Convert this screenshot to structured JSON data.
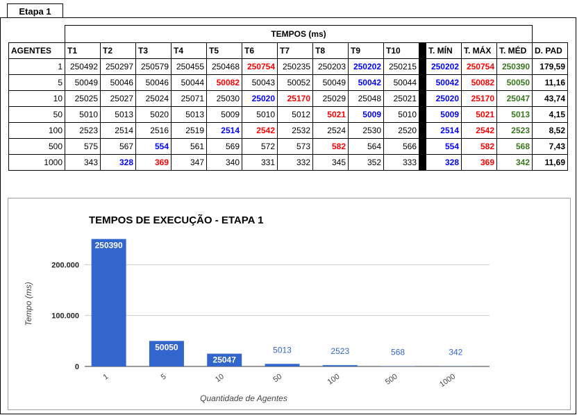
{
  "sheet_tab": "Etapa 1",
  "table": {
    "title": "TEMPOS (ms)",
    "headers": [
      "AGENTES",
      "T1",
      "T2",
      "T3",
      "T4",
      "T5",
      "T6",
      "T7",
      "T8",
      "T9",
      "T10",
      "T. MÍN",
      "T. MÁX",
      "T. MÉD",
      "D. PAD"
    ],
    "rows": [
      {
        "agents": "1",
        "t": [
          "250492",
          "250297",
          "250579",
          "250455",
          "250468",
          "250754",
          "250235",
          "250203",
          "250202",
          "250215"
        ],
        "min_col": 8,
        "max_col": 5,
        "tmin": "250202",
        "tmax": "250754",
        "tmed": "250390",
        "dpad": "179,59"
      },
      {
        "agents": "5",
        "t": [
          "50049",
          "50046",
          "50046",
          "50044",
          "50082",
          "50043",
          "50052",
          "50049",
          "50042",
          "50044"
        ],
        "min_col": 8,
        "max_col": 4,
        "tmin": "50042",
        "tmax": "50082",
        "tmed": "50050",
        "dpad": "11,16"
      },
      {
        "agents": "10",
        "t": [
          "25025",
          "25027",
          "25024",
          "25071",
          "25030",
          "25020",
          "25170",
          "25029",
          "25048",
          "25021"
        ],
        "min_col": 5,
        "max_col": 6,
        "tmin": "25020",
        "tmax": "25170",
        "tmed": "25047",
        "dpad": "43,74"
      },
      {
        "agents": "50",
        "t": [
          "5010",
          "5013",
          "5020",
          "5013",
          "5009",
          "5010",
          "5012",
          "5021",
          "5009",
          "5010"
        ],
        "min_col": 8,
        "max_col": 7,
        "tmin": "5009",
        "tmax": "5021",
        "tmed": "5013",
        "dpad": "4,15"
      },
      {
        "agents": "100",
        "t": [
          "2523",
          "2514",
          "2516",
          "2519",
          "2514",
          "2542",
          "2532",
          "2524",
          "2530",
          "2520"
        ],
        "min_col": 4,
        "max_col": 5,
        "tmin": "2514",
        "tmax": "2542",
        "tmed": "2523",
        "dpad": "8,52"
      },
      {
        "agents": "500",
        "t": [
          "575",
          "567",
          "554",
          "561",
          "569",
          "572",
          "573",
          "582",
          "564",
          "566"
        ],
        "min_col": 2,
        "max_col": 7,
        "tmin": "554",
        "tmax": "582",
        "tmed": "568",
        "dpad": "7,43"
      },
      {
        "agents": "1000",
        "t": [
          "343",
          "328",
          "369",
          "347",
          "340",
          "331",
          "332",
          "345",
          "352",
          "333"
        ],
        "min_col": 1,
        "max_col": 2,
        "tmin": "328",
        "tmax": "369",
        "tmed": "342",
        "dpad": "11,69"
      }
    ]
  },
  "colors": {
    "min": "#0000ff",
    "max": "#ff0000",
    "avg": "#38761d",
    "bar": "#3366cc",
    "label_out": "#3366cc",
    "grid": "#cccccc"
  },
  "chart_data": {
    "type": "bar",
    "title": "TEMPOS DE EXECUÇÃO - ETAPA 1",
    "xlabel": "Quantidade de Agentes",
    "ylabel": "Tempo (ms)",
    "categories": [
      "1",
      "5",
      "10",
      "50",
      "100",
      "500",
      "1000"
    ],
    "values": [
      250390,
      50050,
      25047,
      5013,
      2523,
      568,
      342
    ],
    "ylim": [
      0,
      270000
    ],
    "yticks": [
      0,
      100000,
      200000
    ],
    "ytick_labels": [
      "0",
      "100.000",
      "200.000"
    ],
    "grid": true,
    "legend": "none"
  }
}
